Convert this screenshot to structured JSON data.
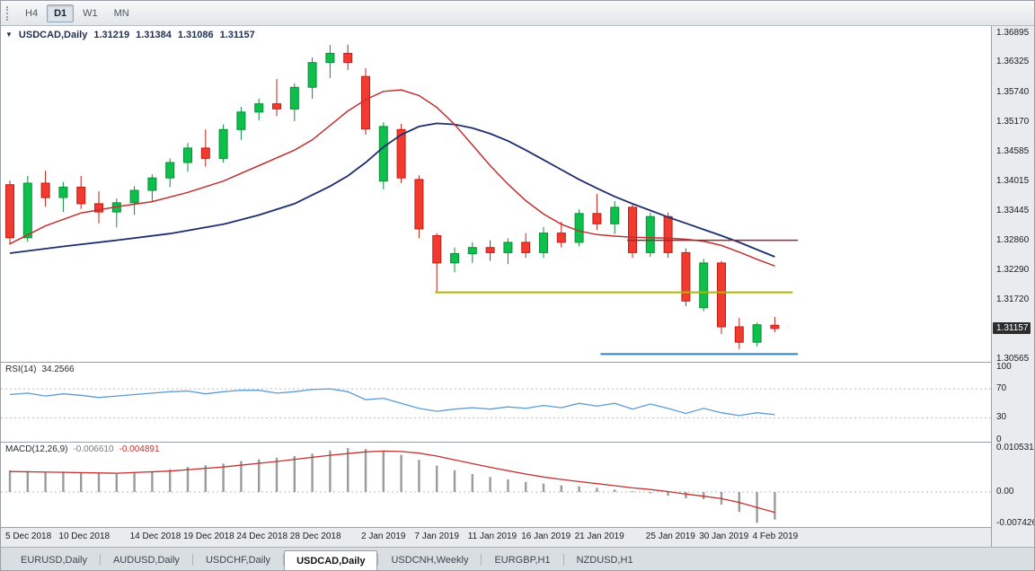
{
  "toolbar": {
    "buttons": [
      {
        "label": "H4",
        "active": false
      },
      {
        "label": "D1",
        "active": true
      },
      {
        "label": "W1",
        "active": false
      },
      {
        "label": "MN",
        "active": false
      }
    ]
  },
  "chart_header": {
    "collapse_icon": "▼",
    "symbol": "USDCAD,Daily",
    "open": "1.31219",
    "high": "1.31384",
    "low": "1.31086",
    "close": "1.31157"
  },
  "rsi_panel": {
    "name": "RSI(14)",
    "value": "34.2566"
  },
  "macd_panel": {
    "name": "MACD(12,26,9)",
    "main_value": "-0.006610",
    "signal_value": "-0.004891"
  },
  "tabs": [
    {
      "label": "EURUSD,Daily",
      "active": false
    },
    {
      "label": "AUDUSD,Daily",
      "active": false
    },
    {
      "label": "USDCHF,Daily",
      "active": false
    },
    {
      "label": "USDCAD,Daily",
      "active": true
    },
    {
      "label": "USDCNH,Weekly",
      "active": false
    },
    {
      "label": "EURGBP,H1",
      "active": false
    },
    {
      "label": "NZDUSD,H1",
      "active": false
    }
  ],
  "chart_data": {
    "type": "candlestick",
    "symbol": "USDCAD",
    "timeframe": "Daily",
    "price_min": 1.3051,
    "price_max": 1.3703,
    "bar_start_x": 10,
    "bar_spacing": 19.8,
    "colors": {
      "up": "#0fbf4c",
      "up_border": "#089038",
      "down": "#f23a30",
      "down_border": "#c01f15",
      "ma_fast": "#c03030",
      "ma_slow": "#1d2e6e",
      "rsi_line": "#5b9bd5",
      "macd_hist": "#9b9b9b",
      "macd_signal": "#c53030",
      "grid_dotted": "#b6bcc2"
    },
    "candles": [
      [
        1.3395,
        1.3403,
        1.3278,
        1.3292
      ],
      [
        1.3292,
        1.3412,
        1.3284,
        1.3398
      ],
      [
        1.3398,
        1.3422,
        1.3352,
        1.337
      ],
      [
        1.337,
        1.34,
        1.3342,
        1.339
      ],
      [
        1.339,
        1.3412,
        1.3348,
        1.3358
      ],
      [
        1.3358,
        1.3382,
        1.332,
        1.3342
      ],
      [
        1.3342,
        1.3368,
        1.3312,
        1.336
      ],
      [
        1.336,
        1.3392,
        1.3336,
        1.3384
      ],
      [
        1.3384,
        1.3415,
        1.3362,
        1.3408
      ],
      [
        1.3408,
        1.3446,
        1.339,
        1.3438
      ],
      [
        1.3438,
        1.3476,
        1.342,
        1.3466
      ],
      [
        1.3466,
        1.3502,
        1.343,
        1.3446
      ],
      [
        1.3446,
        1.3512,
        1.3438,
        1.3502
      ],
      [
        1.3502,
        1.3546,
        1.3482,
        1.3536
      ],
      [
        1.3536,
        1.3562,
        1.352,
        1.3552
      ],
      [
        1.3552,
        1.36,
        1.3528,
        1.3542
      ],
      [
        1.3542,
        1.3592,
        1.3518,
        1.3584
      ],
      [
        1.3584,
        1.3642,
        1.3562,
        1.3632
      ],
      [
        1.3632,
        1.3666,
        1.3602,
        1.365
      ],
      [
        1.365,
        1.3667,
        1.3618,
        1.3632
      ],
      [
        1.3605,
        1.3621,
        1.3492,
        1.3503
      ],
      [
        1.3402,
        1.3516,
        1.3386,
        1.3508
      ],
      [
        1.3502,
        1.3513,
        1.3398,
        1.3408
      ],
      [
        1.3405,
        1.3413,
        1.3291,
        1.3309
      ],
      [
        1.3296,
        1.3301,
        1.3186,
        1.3243
      ],
      [
        1.3243,
        1.3273,
        1.3225,
        1.3261
      ],
      [
        1.3261,
        1.3283,
        1.3243,
        1.3273
      ],
      [
        1.3273,
        1.3287,
        1.3247,
        1.3263
      ],
      [
        1.3263,
        1.3291,
        1.3241,
        1.3283
      ],
      [
        1.3283,
        1.3301,
        1.3253,
        1.3263
      ],
      [
        1.3263,
        1.3313,
        1.3253,
        1.3301
      ],
      [
        1.3301,
        1.3323,
        1.3273,
        1.3283
      ],
      [
        1.3283,
        1.3347,
        1.3275,
        1.3339
      ],
      [
        1.3339,
        1.3377,
        1.3307,
        1.3319
      ],
      [
        1.3319,
        1.3363,
        1.3299,
        1.3351
      ],
      [
        1.3351,
        1.3357,
        1.3253,
        1.3263
      ],
      [
        1.3263,
        1.3341,
        1.3255,
        1.3333
      ],
      [
        1.3333,
        1.3341,
        1.3253,
        1.3263
      ],
      [
        1.3263,
        1.3271,
        1.3159,
        1.3169
      ],
      [
        1.3156,
        1.3251,
        1.3149,
        1.3243
      ],
      [
        1.3243,
        1.3247,
        1.3105,
        1.3119
      ],
      [
        1.3119,
        1.3136,
        1.3076,
        1.3089
      ],
      [
        1.3089,
        1.3127,
        1.3081,
        1.3123
      ],
      [
        1.31219,
        1.31384,
        1.31086,
        1.31157
      ]
    ],
    "ma_fast": {
      "points": [
        [
          0,
          1.328
        ],
        [
          2,
          1.3315
        ],
        [
          4,
          1.334
        ],
        [
          6,
          1.3352
        ],
        [
          8,
          1.3362
        ],
        [
          10,
          1.338
        ],
        [
          12,
          1.3402
        ],
        [
          14,
          1.3432
        ],
        [
          16,
          1.3462
        ],
        [
          17,
          1.3482
        ],
        [
          18,
          1.351
        ],
        [
          19,
          1.3538
        ],
        [
          20,
          1.356
        ],
        [
          21,
          1.3576
        ],
        [
          22,
          1.3579
        ],
        [
          23,
          1.3568
        ],
        [
          24,
          1.3545
        ],
        [
          25,
          1.3512
        ],
        [
          26,
          1.3472
        ],
        [
          27,
          1.3432
        ],
        [
          28,
          1.3396
        ],
        [
          29,
          1.3364
        ],
        [
          30,
          1.3338
        ],
        [
          31,
          1.3318
        ],
        [
          32,
          1.3305
        ],
        [
          33,
          1.3298
        ],
        [
          34,
          1.3295
        ],
        [
          35,
          1.3293
        ],
        [
          36,
          1.3292
        ],
        [
          37,
          1.3291
        ],
        [
          38,
          1.3289
        ],
        [
          39,
          1.3285
        ],
        [
          40,
          1.3277
        ],
        [
          41,
          1.3264
        ],
        [
          42,
          1.325
        ],
        [
          43,
          1.3237
        ]
      ]
    },
    "ma_slow": {
      "points": [
        [
          0,
          1.3262
        ],
        [
          3,
          1.3275
        ],
        [
          6,
          1.3287
        ],
        [
          9,
          1.33
        ],
        [
          12,
          1.3318
        ],
        [
          14,
          1.3336
        ],
        [
          16,
          1.3358
        ],
        [
          18,
          1.3392
        ],
        [
          19,
          1.3412
        ],
        [
          20,
          1.3438
        ],
        [
          21,
          1.3468
        ],
        [
          22,
          1.3492
        ],
        [
          23,
          1.3508
        ],
        [
          24,
          1.3514
        ],
        [
          25,
          1.3512
        ],
        [
          26,
          1.3505
        ],
        [
          27,
          1.3494
        ],
        [
          28,
          1.348
        ],
        [
          29,
          1.3462
        ],
        [
          30,
          1.3443
        ],
        [
          31,
          1.3424
        ],
        [
          32,
          1.3405
        ],
        [
          33,
          1.3388
        ],
        [
          34,
          1.3372
        ],
        [
          35,
          1.3358
        ],
        [
          36,
          1.3345
        ],
        [
          37,
          1.3332
        ],
        [
          38,
          1.332
        ],
        [
          39,
          1.3308
        ],
        [
          40,
          1.3296
        ],
        [
          41,
          1.3283
        ],
        [
          42,
          1.3269
        ],
        [
          43,
          1.3255
        ]
      ]
    },
    "hlines": [
      {
        "price": 1.3186,
        "i1": 23.9,
        "i2": 44.0,
        "color": "#adb800",
        "width": 2
      },
      {
        "price": 1.3066,
        "i1": 33.2,
        "i2": 44.3,
        "color": "#2f80c8",
        "width": 2
      },
      {
        "price": 1.3287,
        "i1": 34.7,
        "i2": 44.3,
        "color": "#8e2e2e",
        "width": 1.5
      }
    ],
    "price_ticks": [
      {
        "label": "1.36895",
        "p": 1.36895
      },
      {
        "label": "1.36325",
        "p": 1.36325
      },
      {
        "label": "1.35740",
        "p": 1.3574
      },
      {
        "label": "1.35170",
        "p": 1.3517
      },
      {
        "label": "1.34585",
        "p": 1.34585
      },
      {
        "label": "1.34015",
        "p": 1.34015
      },
      {
        "label": "1.33445",
        "p": 1.33445
      },
      {
        "label": "1.32860",
        "p": 1.3286
      },
      {
        "label": "1.32290",
        "p": 1.3229
      },
      {
        "label": "1.31720",
        "p": 1.3172
      },
      {
        "label": "1.30565",
        "p": 1.30565
      }
    ],
    "price_badge": {
      "label": "1.31157",
      "p": 1.31157
    },
    "rsi": {
      "vmax": 106,
      "vmin": -3,
      "current": 34.2566,
      "levels": [
        {
          "label": "100",
          "v": 100,
          "dashed": false
        },
        {
          "label": "70",
          "v": 70,
          "dashed": true
        },
        {
          "label": "30",
          "v": 30,
          "dashed": true
        },
        {
          "label": "0",
          "v": 0,
          "dashed": false
        }
      ],
      "series": [
        [
          0,
          62
        ],
        [
          1,
          64
        ],
        [
          2,
          60
        ],
        [
          3,
          63
        ],
        [
          4,
          61
        ],
        [
          5,
          58
        ],
        [
          6,
          60
        ],
        [
          7,
          62
        ],
        [
          8,
          64
        ],
        [
          9,
          66
        ],
        [
          10,
          67
        ],
        [
          11,
          63
        ],
        [
          12,
          66
        ],
        [
          13,
          68
        ],
        [
          14,
          68
        ],
        [
          15,
          64
        ],
        [
          16,
          66
        ],
        [
          17,
          69
        ],
        [
          18,
          70
        ],
        [
          19,
          66
        ],
        [
          20,
          55
        ],
        [
          21,
          57
        ],
        [
          22,
          50
        ],
        [
          23,
          43
        ],
        [
          24,
          39
        ],
        [
          25,
          42
        ],
        [
          26,
          44
        ],
        [
          27,
          42
        ],
        [
          28,
          45
        ],
        [
          29,
          43
        ],
        [
          30,
          47
        ],
        [
          31,
          44
        ],
        [
          32,
          50
        ],
        [
          33,
          46
        ],
        [
          34,
          50
        ],
        [
          35,
          42
        ],
        [
          36,
          49
        ],
        [
          37,
          43
        ],
        [
          38,
          36
        ],
        [
          39,
          43
        ],
        [
          40,
          37
        ],
        [
          41,
          33
        ],
        [
          42,
          37
        ],
        [
          43,
          34.26
        ]
      ]
    },
    "macd": {
      "vmax": 0.01182,
      "vmin": -0.00838,
      "main_current": -0.00661,
      "signal_current": -0.004891,
      "scale_ticks": [
        {
          "label": "0.010531",
          "v": 0.010531
        },
        {
          "label": "0.00",
          "v": 0
        },
        {
          "label": "-0.007426",
          "v": -0.007426
        }
      ],
      "hist": [
        0.0052,
        0.005,
        0.0048,
        0.0049,
        0.0047,
        0.0044,
        0.0043,
        0.0045,
        0.0049,
        0.0054,
        0.006,
        0.0064,
        0.0068,
        0.0074,
        0.0078,
        0.0082,
        0.0086,
        0.0092,
        0.0099,
        0.0105,
        0.0103,
        0.0097,
        0.0089,
        0.0077,
        0.0063,
        0.0052,
        0.0043,
        0.0036,
        0.003,
        0.0024,
        0.002,
        0.0016,
        0.0014,
        0.001,
        0.0006,
        0.0002,
        -0.0003,
        -0.0009,
        -0.0015,
        -0.0017,
        -0.003,
        -0.0048,
        -0.0074,
        -0.0066
      ],
      "signal": [
        [
          0,
          0.0049
        ],
        [
          3,
          0.0047
        ],
        [
          6,
          0.0045
        ],
        [
          9,
          0.005
        ],
        [
          12,
          0.006
        ],
        [
          15,
          0.0073
        ],
        [
          18,
          0.0088
        ],
        [
          20,
          0.0096
        ],
        [
          21,
          0.0098
        ],
        [
          22,
          0.0097
        ],
        [
          23,
          0.0093
        ],
        [
          24,
          0.0086
        ],
        [
          25,
          0.0077
        ],
        [
          26,
          0.0068
        ],
        [
          27,
          0.0059
        ],
        [
          28,
          0.0051
        ],
        [
          29,
          0.0043
        ],
        [
          30,
          0.0036
        ],
        [
          31,
          0.003
        ],
        [
          32,
          0.0025
        ],
        [
          33,
          0.002
        ],
        [
          34,
          0.0015
        ],
        [
          35,
          0.001
        ],
        [
          36,
          0.0006
        ],
        [
          37,
          0.0001
        ],
        [
          38,
          -0.0005
        ],
        [
          39,
          -0.001
        ],
        [
          40,
          -0.0016
        ],
        [
          41,
          -0.0025
        ],
        [
          42,
          -0.0037
        ],
        [
          43,
          -0.004891
        ]
      ]
    },
    "date_ticks": [
      {
        "i": 0,
        "label": "5 Dec 2018"
      },
      {
        "i": 3,
        "label": "10 Dec 2018"
      },
      {
        "i": 7,
        "label": "14 Dec 2018"
      },
      {
        "i": 10,
        "label": "19 Dec 2018"
      },
      {
        "i": 13,
        "label": "24 Dec 2018"
      },
      {
        "i": 16,
        "label": "28 Dec 2018"
      },
      {
        "i": 20,
        "label": "2 Jan 2019"
      },
      {
        "i": 23,
        "label": "7 Jan 2019"
      },
      {
        "i": 26,
        "label": "11 Jan 2019"
      },
      {
        "i": 29,
        "label": "16 Jan 2019"
      },
      {
        "i": 32,
        "label": "21 Jan 2019"
      },
      {
        "i": 36,
        "label": "25 Jan 2019"
      },
      {
        "i": 39,
        "label": "30 Jan 2019"
      },
      {
        "i": 42,
        "label": "4 Feb 2019"
      }
    ]
  }
}
